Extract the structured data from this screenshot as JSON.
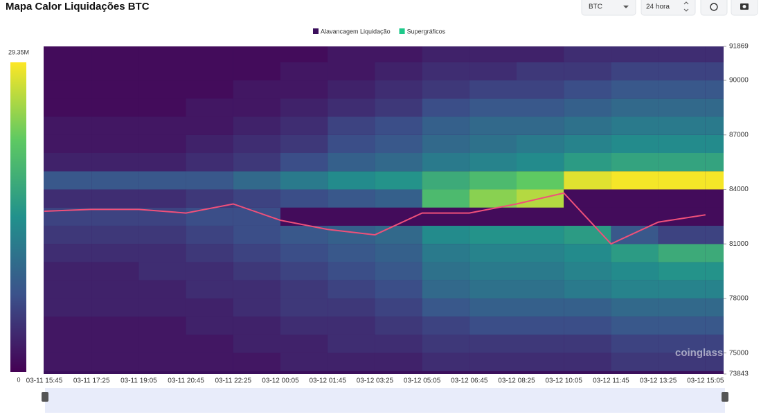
{
  "header": {
    "title": "Mapa Calor Liquidações BTC",
    "symbol": "BTC",
    "range": "24 hora"
  },
  "watermark": "coinglass",
  "chart_data": {
    "type": "heatmap",
    "legend": [
      {
        "name": "Alavancagem Liquidação",
        "color": "#3b0f5c"
      },
      {
        "name": "Supergráficos",
        "color": "#1ec98a"
      }
    ],
    "x": [
      "03-11 15:45",
      "03-11 17:25",
      "03-11 19:05",
      "03-11 20:45",
      "03-11 22:25",
      "03-12 00:05",
      "03-12 01:45",
      "03-12 03:25",
      "03-12 05:05",
      "03-12 06:45",
      "03-12 08:25",
      "03-12 10:05",
      "03-12 11:45",
      "03-12 13:25",
      "03-12 15:05"
    ],
    "ylim": [
      73843,
      91869
    ],
    "yticks": [
      73843,
      75000,
      78000,
      81000,
      84000,
      87000,
      90000,
      91869
    ],
    "zlim": [
      0,
      29.35
    ],
    "zticks": [
      0,
      {
        "value": 29.35,
        "label": "29.35M"
      }
    ],
    "y_levels": [
      74500,
      75500,
      76500,
      77500,
      78500,
      79500,
      80500,
      81500,
      82500,
      83500,
      84500,
      85500,
      86500,
      87500,
      88500,
      89500,
      90500,
      91500
    ],
    "z": [
      [
        2,
        2,
        2,
        2,
        2,
        3,
        3,
        3,
        4,
        4,
        4,
        4,
        5,
        5,
        5
      ],
      [
        2,
        2,
        2,
        2,
        3,
        3,
        4,
        4,
        5,
        5,
        5,
        5,
        6,
        6,
        6
      ],
      [
        2,
        2,
        2,
        3,
        3,
        4,
        4,
        5,
        6,
        7,
        7,
        7,
        8,
        8,
        8
      ],
      [
        3,
        3,
        3,
        3,
        4,
        5,
        5,
        6,
        8,
        9,
        9,
        9,
        10,
        10,
        10
      ],
      [
        3,
        3,
        3,
        4,
        4,
        5,
        6,
        7,
        10,
        11,
        11,
        12,
        13,
        13,
        13
      ],
      [
        3,
        3,
        4,
        4,
        5,
        6,
        7,
        8,
        11,
        12,
        12,
        13,
        14,
        15,
        15
      ],
      [
        4,
        4,
        4,
        5,
        6,
        7,
        8,
        9,
        12,
        13,
        13,
        14,
        16,
        18,
        18
      ],
      [
        5,
        5,
        5,
        6,
        7,
        8,
        9,
        10,
        14,
        15,
        15,
        16,
        8,
        6,
        6
      ],
      [
        6,
        6,
        6,
        7,
        7,
        1,
        1,
        1,
        1,
        1,
        1,
        1,
        1,
        1,
        1
      ],
      [
        4,
        4,
        4,
        5,
        6,
        7,
        8,
        9,
        20,
        24,
        26,
        1,
        1,
        1,
        1
      ],
      [
        8,
        8,
        8,
        8,
        10,
        12,
        14,
        15,
        18,
        20,
        22,
        28,
        29,
        29,
        29
      ],
      [
        3,
        3,
        3,
        4,
        5,
        7,
        9,
        10,
        12,
        13,
        14,
        16,
        17,
        17,
        17
      ],
      [
        2,
        2,
        2,
        3,
        4,
        5,
        7,
        8,
        10,
        11,
        12,
        13,
        14,
        14,
        14
      ],
      [
        2,
        2,
        2,
        2,
        3,
        4,
        6,
        7,
        9,
        10,
        10,
        11,
        12,
        12,
        12
      ],
      [
        1,
        1,
        1,
        2,
        2,
        3,
        4,
        5,
        7,
        8,
        8,
        9,
        10,
        10,
        10
      ],
      [
        1,
        1,
        1,
        1,
        2,
        2,
        3,
        4,
        5,
        6,
        6,
        7,
        8,
        8,
        8
      ],
      [
        1,
        1,
        1,
        1,
        1,
        2,
        2,
        3,
        4,
        4,
        5,
        5,
        6,
        6,
        6
      ],
      [
        1,
        1,
        1,
        1,
        1,
        1,
        2,
        2,
        3,
        3,
        3,
        4,
        4,
        4,
        4
      ]
    ],
    "series": [
      {
        "name": "BTC",
        "color": "#f0507a",
        "values": [
          82800,
          82900,
          82900,
          82700,
          83200,
          82300,
          81800,
          81500,
          82700,
          82700,
          83200,
          83800,
          81000,
          82200,
          82600
        ]
      }
    ]
  }
}
